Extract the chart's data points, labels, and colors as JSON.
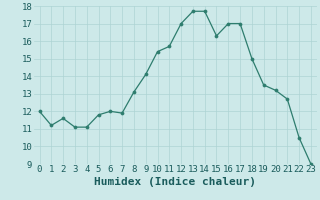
{
  "x": [
    0,
    1,
    2,
    3,
    4,
    5,
    6,
    7,
    8,
    9,
    10,
    11,
    12,
    13,
    14,
    15,
    16,
    17,
    18,
    19,
    20,
    21,
    22,
    23
  ],
  "y": [
    12,
    11.2,
    11.6,
    11.1,
    11.1,
    11.8,
    12.0,
    11.9,
    13.1,
    14.1,
    15.4,
    15.7,
    17.0,
    17.7,
    17.7,
    16.3,
    17.0,
    17.0,
    15.0,
    13.5,
    13.2,
    12.7,
    10.5,
    9.0
  ],
  "xlabel": "Humidex (Indice chaleur)",
  "ylim": [
    9,
    18
  ],
  "xlim": [
    -0.5,
    23.5
  ],
  "yticks": [
    9,
    10,
    11,
    12,
    13,
    14,
    15,
    16,
    17,
    18
  ],
  "xtick_labels": [
    "0",
    "1",
    "2",
    "3",
    "4",
    "5",
    "6",
    "7",
    "8",
    "9",
    "10",
    "11",
    "12",
    "13",
    "14",
    "15",
    "16",
    "17",
    "18",
    "19",
    "20",
    "21",
    "22",
    "23"
  ],
  "line_color": "#2e7d6e",
  "marker_color": "#2e7d6e",
  "bg_color": "#cde9e9",
  "grid_color": "#aed4d4",
  "xlabel_fontsize": 8,
  "tick_fontsize": 6.5
}
